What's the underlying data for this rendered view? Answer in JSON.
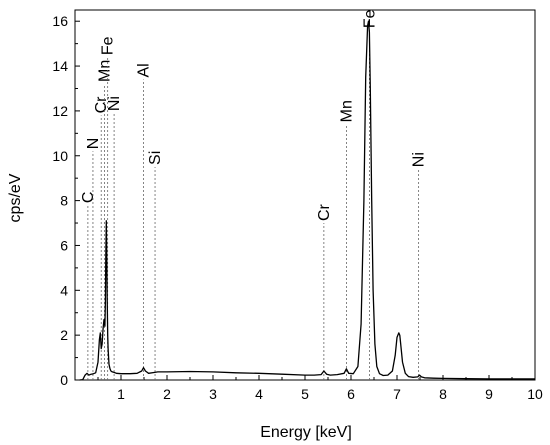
{
  "chart_data": {
    "type": "line",
    "title": "",
    "xlabel": "Energy [keV]",
    "ylabel": "cps/eV",
    "xlim": [
      0,
      10
    ],
    "ylim": [
      0,
      16.5
    ],
    "x_ticks": [
      1,
      2,
      3,
      4,
      5,
      6,
      7,
      8,
      9,
      10
    ],
    "x_tick_labels": [
      "1",
      "2",
      "3",
      "4",
      "5",
      "6",
      "7",
      "8",
      "9",
      "10"
    ],
    "y_ticks": [
      0,
      2,
      4,
      6,
      8,
      10,
      12,
      14,
      16
    ],
    "y_tick_labels": [
      "0",
      "2",
      "4",
      "6",
      "8",
      "10",
      "12",
      "14",
      "16"
    ],
    "grid": false,
    "legend": "none",
    "line_color": "#000000",
    "marker_color": "#666666",
    "series": [
      {
        "x": [
          0.1,
          0.17,
          0.22,
          0.26,
          0.3,
          0.35,
          0.4,
          0.45,
          0.5,
          0.53,
          0.55,
          0.57,
          0.59,
          0.61,
          0.63,
          0.65,
          0.66,
          0.67,
          0.68,
          0.69,
          0.7,
          0.71,
          0.72,
          0.73,
          0.74,
          0.76,
          0.78,
          0.81,
          0.85,
          0.9,
          1.0,
          1.2,
          1.35,
          1.45,
          1.49,
          1.53,
          1.6,
          1.7,
          1.8,
          2.0,
          2.5,
          3.0,
          3.5,
          4.0,
          4.5,
          5.0,
          5.2,
          5.35,
          5.41,
          5.47,
          5.55,
          5.7,
          5.85,
          5.9,
          5.95,
          6.05,
          6.15,
          6.22,
          6.28,
          6.32,
          6.36,
          6.38,
          6.4,
          6.42,
          6.45,
          6.48,
          6.52,
          6.56,
          6.62,
          6.7,
          6.8,
          6.9,
          6.96,
          7.0,
          7.04,
          7.06,
          7.08,
          7.12,
          7.18,
          7.25,
          7.35,
          7.45,
          7.49,
          7.53,
          7.6,
          7.8,
          8.0,
          8.5,
          9.0,
          9.5,
          10.0
        ],
        "values": [
          0.0,
          0.02,
          0.22,
          0.3,
          0.22,
          0.26,
          0.28,
          0.32,
          0.8,
          1.8,
          2.1,
          1.4,
          1.6,
          2.3,
          2.7,
          2.4,
          3.5,
          5.5,
          7.1,
          5.8,
          3.6,
          2.0,
          1.4,
          1.0,
          0.7,
          0.5,
          0.4,
          0.36,
          0.34,
          0.3,
          0.28,
          0.28,
          0.3,
          0.4,
          0.55,
          0.4,
          0.3,
          0.33,
          0.36,
          0.36,
          0.38,
          0.36,
          0.32,
          0.3,
          0.26,
          0.22,
          0.22,
          0.24,
          0.4,
          0.26,
          0.22,
          0.24,
          0.3,
          0.5,
          0.3,
          0.28,
          0.6,
          2.5,
          8.0,
          13.5,
          15.8,
          16.0,
          15.5,
          13.0,
          8.0,
          4.0,
          1.6,
          0.6,
          0.28,
          0.2,
          0.22,
          0.4,
          1.1,
          1.9,
          2.1,
          2.0,
          1.6,
          0.8,
          0.3,
          0.15,
          0.12,
          0.14,
          0.22,
          0.14,
          0.1,
          0.08,
          0.07,
          0.06,
          0.05,
          0.05,
          0.05
        ]
      }
    ],
    "element_markers": [
      {
        "label": "C",
        "x": 0.28,
        "y_top": 7.8
      },
      {
        "label": "N",
        "x": 0.39,
        "y_top": 10.2
      },
      {
        "label": "Cr",
        "x": 0.57,
        "y_top": 11.8
      },
      {
        "label": "Mn",
        "x": 0.64,
        "y_top": 13.2
      },
      {
        "label": "Fe",
        "x": 0.71,
        "y_top": 14.4
      },
      {
        "label": "Ni",
        "x": 0.85,
        "y_top": 11.9
      },
      {
        "label": "Al",
        "x": 1.49,
        "y_top": 13.4
      },
      {
        "label": "Si",
        "x": 1.74,
        "y_top": 9.5
      },
      {
        "label": "Cr",
        "x": 5.41,
        "y_top": 7.0
      },
      {
        "label": "Mn",
        "x": 5.9,
        "y_top": 11.4
      },
      {
        "label": "Fe",
        "x": 6.4,
        "y_top": 15.6
      },
      {
        "label": "Ni",
        "x": 7.47,
        "y_top": 9.4
      }
    ]
  }
}
